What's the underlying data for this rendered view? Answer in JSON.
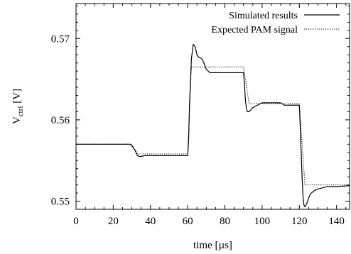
{
  "chart_data": {
    "type": "line",
    "xlabel": "time [µs]",
    "ylabel_main": "V",
    "ylabel_sub": "ctrl",
    "ylabel_unit": " [V]",
    "xlim": [
      0,
      147
    ],
    "ylim": [
      0.549,
      0.5743
    ],
    "xticks": [
      0,
      20,
      40,
      60,
      80,
      100,
      120,
      140
    ],
    "xtick_labels": [
      "0",
      "20",
      "40",
      "60",
      "80",
      "100",
      "120",
      "140"
    ],
    "yticks": [
      0.55,
      0.56,
      0.57
    ],
    "ytick_labels": [
      "0.55",
      "0.56",
      "0.57"
    ],
    "legend_position": "top-right",
    "grid": false,
    "series": [
      {
        "name": "Simulated results",
        "style": "solid",
        "x": [
          0,
          29,
          30,
          31,
          32,
          33,
          34,
          35,
          37,
          40,
          45,
          50,
          55,
          60,
          60.5,
          61,
          62,
          63,
          64,
          65,
          66,
          67,
          68,
          69,
          70,
          72,
          74,
          76,
          78,
          80,
          82,
          84,
          86,
          88,
          90,
          90.5,
          91,
          91.5,
          92,
          93,
          95,
          100,
          105,
          110,
          112,
          114,
          116,
          118,
          120,
          120.5,
          121,
          121.5,
          122,
          122.5,
          123,
          124,
          125,
          126,
          128,
          130,
          132,
          135,
          140,
          147
        ],
        "y": [
          0.557,
          0.557,
          0.5568,
          0.5565,
          0.5561,
          0.5556,
          0.5555,
          0.5555,
          0.5556,
          0.5556,
          0.5556,
          0.5556,
          0.5556,
          0.5556,
          0.5575,
          0.562,
          0.5675,
          0.5693,
          0.569,
          0.568,
          0.5677,
          0.5676,
          0.5674,
          0.5668,
          0.5662,
          0.5658,
          0.5658,
          0.5658,
          0.5658,
          0.5658,
          0.5658,
          0.5658,
          0.5658,
          0.5658,
          0.5658,
          0.5645,
          0.5625,
          0.5615,
          0.561,
          0.561,
          0.5615,
          0.5621,
          0.5621,
          0.5621,
          0.5618,
          0.5618,
          0.5618,
          0.5618,
          0.5618,
          0.559,
          0.556,
          0.5528,
          0.5505,
          0.5495,
          0.5493,
          0.5497,
          0.5504,
          0.5509,
          0.5513,
          0.5515,
          0.5516,
          0.5518,
          0.5518,
          0.5519
        ]
      },
      {
        "name": "Expected PAM signal",
        "style": "dotted",
        "x": [
          0,
          30,
          33,
          60,
          62,
          90,
          93,
          120,
          123,
          147
        ],
        "y": [
          0.557,
          0.557,
          0.5558,
          0.5558,
          0.5665,
          0.5665,
          0.562,
          0.562,
          0.552,
          0.552
        ]
      }
    ]
  }
}
